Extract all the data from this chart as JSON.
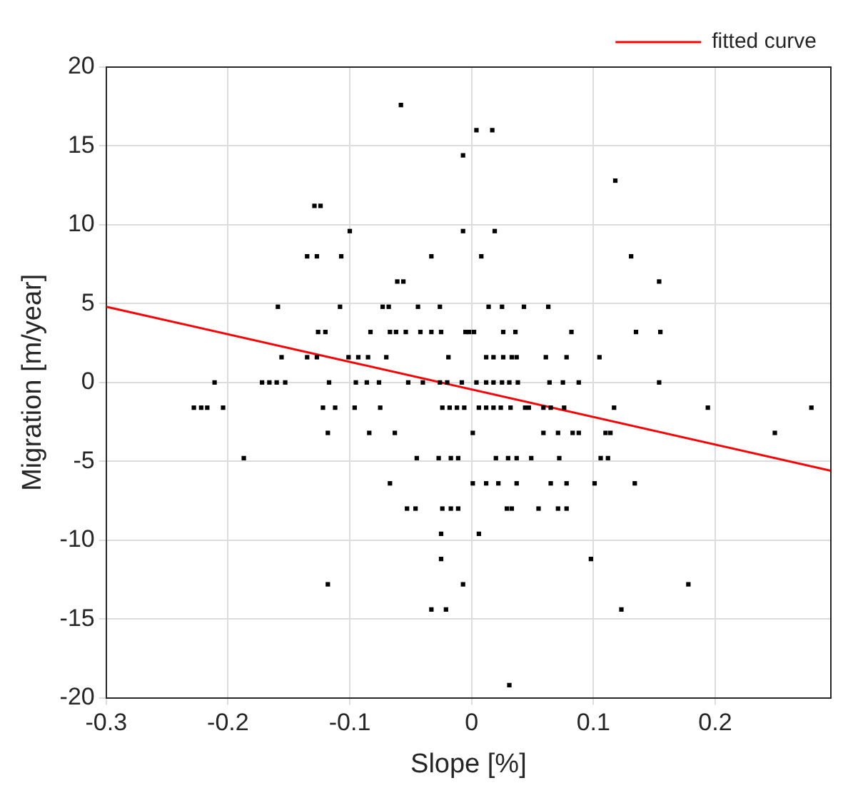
{
  "chart_data": {
    "type": "scatter",
    "xlabel": "Slope [%]",
    "ylabel": "Migration [m/year]",
    "xlim": [
      -0.3,
      0.295
    ],
    "xticks": [
      -0.3,
      -0.2,
      -0.1,
      0,
      0.1,
      0.2
    ],
    "ylim": [
      -20,
      20
    ],
    "yticks": [
      -20,
      -15,
      -10,
      -5,
      0,
      5,
      10,
      15,
      20
    ],
    "grid": true,
    "legend": "top right",
    "series": [
      {
        "marker": "square",
        "color": "#000000",
        "x": [
          -0.058,
          0.004,
          0.017,
          -0.007,
          0.118,
          -0.129,
          -0.124,
          -0.1,
          -0.007,
          0.019,
          -0.135,
          -0.127,
          -0.107,
          -0.033,
          0.008,
          0.131,
          -0.061,
          -0.056,
          0.154,
          -0.159,
          -0.108,
          -0.073,
          -0.068,
          -0.044,
          -0.026,
          0.014,
          0.025,
          0.043,
          0.063,
          -0.126,
          -0.12,
          -0.083,
          -0.067,
          -0.062,
          -0.054,
          -0.042,
          -0.033,
          -0.025,
          -0.005,
          -0.002,
          0.002,
          0.026,
          0.036,
          0.082,
          0.135,
          0.155,
          -0.156,
          -0.135,
          -0.127,
          -0.101,
          -0.093,
          -0.085,
          -0.07,
          -0.019,
          0.012,
          0.018,
          0.026,
          0.033,
          0.037,
          0.061,
          0.078,
          0.105,
          -0.211,
          -0.172,
          -0.166,
          -0.16,
          -0.153,
          -0.117,
          -0.095,
          -0.086,
          -0.076,
          -0.052,
          -0.04,
          -0.026,
          -0.02,
          -0.008,
          0.004,
          0.012,
          0.018,
          0.025,
          0.031,
          0.038,
          0.064,
          0.075,
          0.088,
          0.154,
          -0.228,
          -0.222,
          -0.217,
          -0.204,
          -0.122,
          -0.112,
          -0.096,
          -0.075,
          -0.024,
          -0.018,
          -0.012,
          -0.006,
          0.006,
          0.012,
          0.018,
          0.024,
          0.032,
          0.044,
          0.047,
          0.059,
          0.065,
          0.076,
          0.117,
          0.194,
          0.279,
          -0.118,
          -0.084,
          -0.063,
          0.001,
          0.059,
          0.071,
          0.083,
          0.088,
          0.11,
          0.114,
          0.249,
          -0.187,
          -0.045,
          -0.027,
          -0.017,
          -0.011,
          0.02,
          0.03,
          0.037,
          0.049,
          0.072,
          0.106,
          0.112,
          -0.067,
          0.001,
          0.012,
          0.022,
          0.037,
          0.065,
          0.078,
          0.101,
          0.134,
          -0.053,
          -0.046,
          -0.024,
          -0.017,
          -0.011,
          0.029,
          0.033,
          0.055,
          0.071,
          0.078,
          -0.025,
          0.006,
          -0.025,
          0.098,
          -0.118,
          -0.007,
          0.178,
          -0.033,
          -0.021,
          0.123,
          0.031
        ],
        "values": [
          17.6,
          16,
          16,
          14.4,
          12.8,
          11.2,
          11.2,
          9.6,
          9.6,
          9.6,
          8,
          8,
          8,
          8,
          8,
          8,
          6.4,
          6.4,
          6.4,
          4.8,
          4.8,
          4.8,
          4.8,
          4.8,
          4.8,
          4.8,
          4.8,
          4.8,
          4.8,
          3.2,
          3.2,
          3.2,
          3.2,
          3.2,
          3.2,
          3.2,
          3.2,
          3.2,
          3.2,
          3.2,
          3.2,
          3.2,
          3.2,
          3.2,
          3.2,
          3.2,
          1.6,
          1.6,
          1.6,
          1.6,
          1.6,
          1.6,
          1.6,
          1.6,
          1.6,
          1.6,
          1.6,
          1.6,
          1.6,
          1.6,
          1.6,
          1.6,
          0,
          0,
          0,
          0,
          0,
          0,
          0,
          0,
          0,
          0,
          0,
          0,
          0,
          0,
          0,
          0,
          0,
          0,
          0,
          0,
          0,
          0,
          0,
          0,
          -1.6,
          -1.6,
          -1.6,
          -1.6,
          -1.6,
          -1.6,
          -1.6,
          -1.6,
          -1.6,
          -1.6,
          -1.6,
          -1.6,
          -1.6,
          -1.6,
          -1.6,
          -1.6,
          -1.6,
          -1.6,
          -1.6,
          -1.6,
          -1.6,
          -1.6,
          -1.6,
          -1.6,
          -1.6,
          -3.2,
          -3.2,
          -3.2,
          -3.2,
          -3.2,
          -3.2,
          -3.2,
          -3.2,
          -3.2,
          -3.2,
          -3.2,
          -4.8,
          -4.8,
          -4.8,
          -4.8,
          -4.8,
          -4.8,
          -4.8,
          -4.8,
          -4.8,
          -4.8,
          -4.8,
          -4.8,
          -6.4,
          -6.4,
          -6.4,
          -6.4,
          -6.4,
          -6.4,
          -6.4,
          -6.4,
          -6.4,
          -8,
          -8,
          -8,
          -8,
          -8,
          -8,
          -8,
          -8,
          -8,
          -8,
          -9.6,
          -9.6,
          -11.2,
          -11.2,
          -12.8,
          -12.8,
          -12.8,
          -14.4,
          -14.4,
          -14.4,
          -19.2
        ]
      },
      {
        "type": "line",
        "name": "fitted curve",
        "color": "#ff0000",
        "x": [
          -0.3,
          0.295
        ],
        "values": [
          4.8,
          -5.6
        ]
      }
    ]
  }
}
